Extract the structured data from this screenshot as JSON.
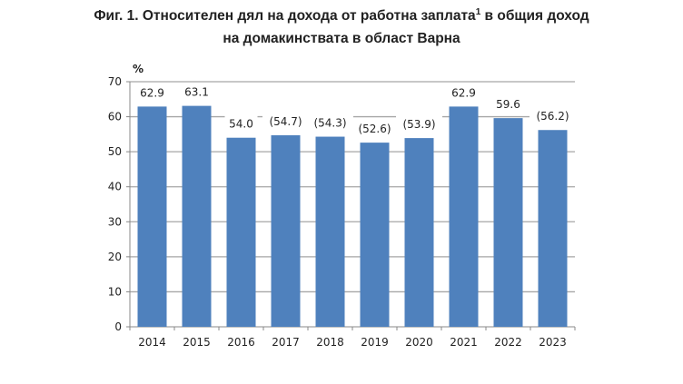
{
  "title_line1": "Фиг. 1. Относителен дял на дохода от работна заплата",
  "title_superscript": "1",
  "title_line1_end": " в общия доход",
  "title_line2": "на домакинствата в област Варна",
  "chart_data": {
    "type": "bar",
    "title": "Фиг. 1. Относителен дял на дохода от работна заплата¹ в общия доход на домакинствата в област Варна",
    "ylabel": "%",
    "xlabel": "",
    "ylim": [
      0,
      70
    ],
    "yticks": [
      0,
      10,
      20,
      30,
      40,
      50,
      60,
      70
    ],
    "grid": true,
    "categories": [
      "2014",
      "2015",
      "2016",
      "2017",
      "2018",
      "2019",
      "2020",
      "2021",
      "2022",
      "2023"
    ],
    "values": [
      62.9,
      63.1,
      54.0,
      54.7,
      54.3,
      52.6,
      53.9,
      62.9,
      59.6,
      56.2
    ],
    "data_labels": [
      "62.9",
      "63.1",
      "54.0",
      "(54.7)",
      "(54.3)",
      "(52.6)",
      "(53.9)",
      "62.9",
      "59.6",
      "(56.2)"
    ],
    "bar_color": "#4f81bd"
  }
}
